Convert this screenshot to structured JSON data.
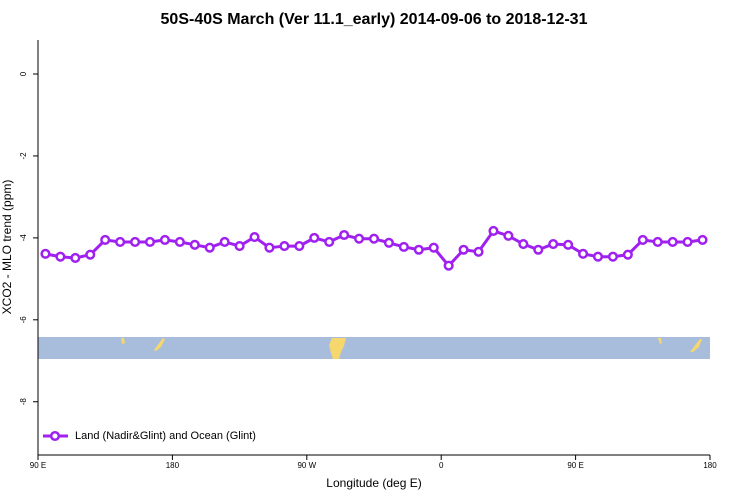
{
  "chart_data": {
    "type": "line",
    "title": "50S-40S March (Ver 11.1_early)   2014-09-06 to 2018-12-31",
    "x_label": "Longitude (deg E)",
    "y_label": "XCO2 - MLO trend (ppm)",
    "x": [
      95,
      105,
      115,
      125,
      135,
      145,
      155,
      165,
      175,
      185,
      195,
      205,
      215,
      225,
      235,
      245,
      255,
      265,
      275,
      285,
      295,
      305,
      315,
      325,
      335,
      345,
      355,
      365,
      375,
      385,
      395,
      405,
      415,
      425,
      435,
      445,
      455,
      465,
      475,
      485,
      495,
      505,
      515,
      525,
      535
    ],
    "series": [
      {
        "name": "Land (Nadir&Glint) and Ocean (Glint)",
        "color": "#a020f0",
        "values": [
          -4.39,
          -4.46,
          -4.49,
          -4.41,
          -4.05,
          -4.1,
          -4.1,
          -4.1,
          -4.05,
          -4.1,
          -4.17,
          -4.24,
          -4.1,
          -4.2,
          -3.98,
          -4.24,
          -4.2,
          -4.2,
          -4.0,
          -4.1,
          -3.93,
          -4.02,
          -4.02,
          -4.12,
          -4.22,
          -4.29,
          -4.24,
          -4.68,
          -4.29,
          -4.34,
          -3.83,
          -3.95,
          -4.15,
          -4.29,
          -4.15,
          -4.17,
          -4.39,
          -4.46,
          -4.46,
          -4.41,
          -4.05,
          -4.1,
          -4.1,
          -4.1,
          -4.05
        ]
      }
    ],
    "xlim": [
      90,
      540
    ],
    "xticks": [
      {
        "value": 90,
        "label": "90 E"
      },
      180,
      {
        "value": 270,
        "label": "90 W"
      },
      {
        "value": 360,
        "label": "0"
      },
      {
        "value": 450,
        "label": "90 E"
      },
      {
        "value": 540,
        "label": "180"
      }
    ],
    "ylim": [
      -9.3,
      0.83
    ],
    "yticks": [
      0,
      -2,
      -4,
      -6,
      -8
    ],
    "legend": "lower left"
  }
}
